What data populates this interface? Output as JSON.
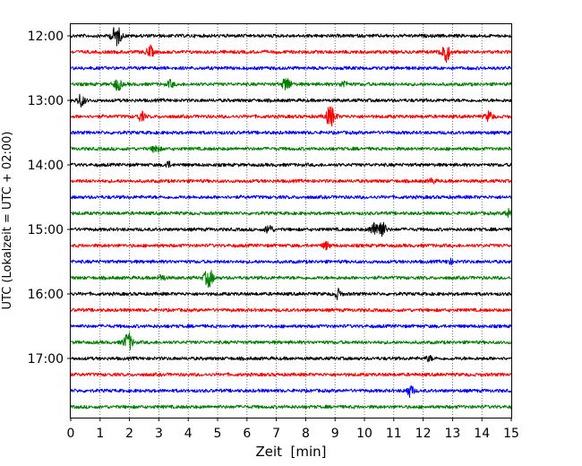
{
  "chart_data": {
    "type": "line",
    "subtype": "helicorder",
    "xlabel": "Zeit  [min]",
    "ylabel": "UTC (Lokalzeit = UTC + 02:00)",
    "xlim": [
      0,
      15
    ],
    "x_ticks": [
      0,
      1,
      2,
      3,
      4,
      5,
      6,
      7,
      8,
      9,
      10,
      11,
      12,
      13,
      14,
      15
    ],
    "x_grid": "dotted",
    "y_ticks": [
      "12:00",
      "13:00",
      "14:00",
      "15:00",
      "16:00",
      "17:00"
    ],
    "trace_interval_min": 15,
    "trace_color_cycle": [
      "#000000",
      "#ff0000",
      "#0000ff",
      "#008000"
    ],
    "traces": [
      {
        "start": "12:00",
        "color": "#000000",
        "events": [
          {
            "t": 1.55,
            "amp": 1.0
          }
        ]
      },
      {
        "start": "12:15",
        "color": "#ff0000",
        "events": [
          {
            "t": 2.7,
            "amp": 0.55
          },
          {
            "t": 12.75,
            "amp": 1.0
          }
        ]
      },
      {
        "start": "12:30",
        "color": "#0000ff",
        "events": []
      },
      {
        "start": "12:45",
        "color": "#008000",
        "events": [
          {
            "t": 1.6,
            "amp": 0.6
          },
          {
            "t": 3.4,
            "amp": 0.35
          },
          {
            "t": 7.35,
            "amp": 0.7
          },
          {
            "t": 9.3,
            "amp": 0.35
          }
        ]
      },
      {
        "start": "13:00",
        "color": "#000000",
        "events": [
          {
            "t": 0.35,
            "amp": 0.6
          }
        ]
      },
      {
        "start": "13:15",
        "color": "#ff0000",
        "events": [
          {
            "t": 2.4,
            "amp": 0.45
          },
          {
            "t": 8.85,
            "amp": 1.0
          },
          {
            "t": 14.25,
            "amp": 0.5
          }
        ]
      },
      {
        "start": "13:30",
        "color": "#0000ff",
        "events": []
      },
      {
        "start": "13:45",
        "color": "#008000",
        "events": [
          {
            "t": 2.9,
            "amp": 0.45
          }
        ]
      },
      {
        "start": "14:00",
        "color": "#000000",
        "events": [
          {
            "t": 3.3,
            "amp": 0.3
          }
        ]
      },
      {
        "start": "14:15",
        "color": "#ff0000",
        "events": [
          {
            "t": 12.3,
            "amp": 0.25
          }
        ]
      },
      {
        "start": "14:30",
        "color": "#0000ff",
        "events": []
      },
      {
        "start": "14:45",
        "color": "#008000",
        "events": [
          {
            "t": 14.9,
            "amp": 0.4
          }
        ]
      },
      {
        "start": "15:00",
        "color": "#000000",
        "events": [
          {
            "t": 6.75,
            "amp": 0.5
          },
          {
            "t": 10.3,
            "amp": 0.5
          },
          {
            "t": 10.55,
            "amp": 1.0
          }
        ]
      },
      {
        "start": "15:15",
        "color": "#ff0000",
        "events": [
          {
            "t": 8.7,
            "amp": 0.35
          }
        ]
      },
      {
        "start": "15:30",
        "color": "#0000ff",
        "events": [
          {
            "t": 12.9,
            "amp": 0.25
          }
        ]
      },
      {
        "start": "15:45",
        "color": "#008000",
        "events": [
          {
            "t": 3.1,
            "amp": 0.3
          },
          {
            "t": 4.7,
            "amp": 0.9
          }
        ]
      },
      {
        "start": "16:00",
        "color": "#000000",
        "events": [
          {
            "t": 9.1,
            "amp": 0.45
          }
        ]
      },
      {
        "start": "16:15",
        "color": "#ff0000",
        "events": []
      },
      {
        "start": "16:30",
        "color": "#0000ff",
        "events": []
      },
      {
        "start": "16:45",
        "color": "#008000",
        "events": [
          {
            "t": 1.95,
            "amp": 0.9
          }
        ]
      },
      {
        "start": "17:00",
        "color": "#000000",
        "events": [
          {
            "t": 12.2,
            "amp": 0.25
          }
        ]
      },
      {
        "start": "17:15",
        "color": "#ff0000",
        "events": []
      },
      {
        "start": "17:30",
        "color": "#0000ff",
        "events": [
          {
            "t": 11.55,
            "amp": 0.55
          }
        ]
      },
      {
        "start": "17:45",
        "color": "#008000",
        "events": []
      }
    ]
  }
}
